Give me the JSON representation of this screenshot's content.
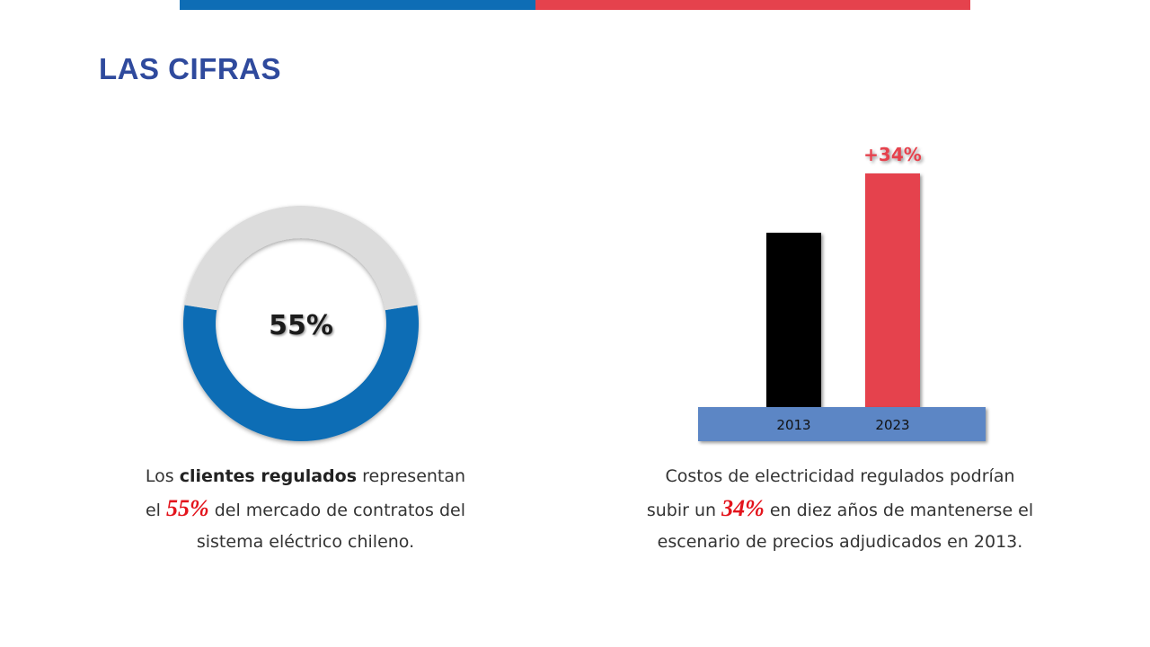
{
  "title": "LAS CIFRAS",
  "colors": {
    "accent_blue": "#0e6db5",
    "accent_red": "#e5424d",
    "title_blue": "#2f4a9d",
    "donut_rest": "#dcdcdc",
    "bar_2013": "#000000",
    "bar_2023": "#e5424d",
    "bar_base": "#5b86c5",
    "highlight_red": "#e3141c"
  },
  "chart_data": [
    {
      "type": "pie",
      "style": "donut",
      "center_label": "55%",
      "slices": [
        {
          "value": 55
        },
        {
          "value": 45
        }
      ]
    },
    {
      "type": "bar",
      "categories": [
        "2013",
        "2023"
      ],
      "values": [
        100,
        134
      ],
      "annotation": "+34%",
      "ylim": [
        0,
        134
      ]
    }
  ],
  "left_caption": {
    "line1_pre": "Los ",
    "line1_bold": "clientes regulados",
    "line1_post": " representan",
    "line2_pre": "el ",
    "line2_highlight": "55%",
    "line2_post": " del mercado de contratos del",
    "line3": "sistema eléctrico chileno."
  },
  "right_caption": {
    "line1": "Costos de electricidad regulados podrían",
    "line2_pre": "subir un ",
    "line2_highlight": "34%",
    "line2_post": " en diez años de mantenerse el",
    "line3": "escenario de precios adjudicados en 2013."
  }
}
